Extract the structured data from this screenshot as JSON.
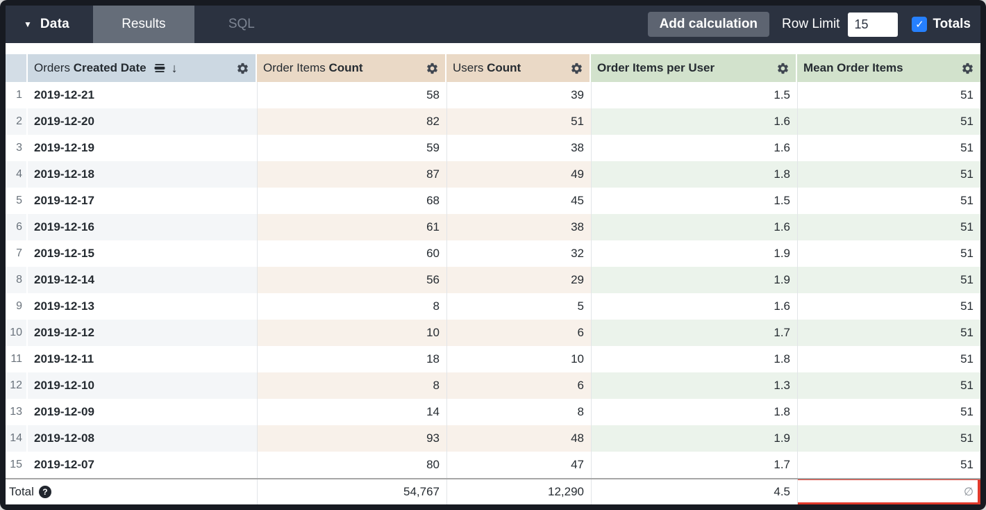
{
  "topbar": {
    "data_label": "Data",
    "tabs": [
      {
        "label": "Results",
        "active": true
      },
      {
        "label": "SQL",
        "active": false
      }
    ],
    "add_calculation_label": "Add calculation",
    "row_limit_label": "Row Limit",
    "row_limit_value": "15",
    "totals_label": "Totals",
    "totals_checked": true
  },
  "table": {
    "columns": [
      {
        "regular": "Orders ",
        "bold": "Created Date",
        "type": "dimension",
        "sorted_desc": true
      },
      {
        "regular": "Order Items ",
        "bold": "Count",
        "type": "measure"
      },
      {
        "regular": "Users ",
        "bold": "Count",
        "type": "measure"
      },
      {
        "regular": "",
        "bold": "Order Items per User",
        "type": "table-calculation"
      },
      {
        "regular": "",
        "bold": "Mean Order Items",
        "type": "table-calculation"
      }
    ],
    "rows": [
      {
        "n": "1",
        "date": "2019-12-21",
        "order_items_count": "58",
        "users_count": "39",
        "order_items_per_user": "1.5",
        "mean_order_items": "51"
      },
      {
        "n": "2",
        "date": "2019-12-20",
        "order_items_count": "82",
        "users_count": "51",
        "order_items_per_user": "1.6",
        "mean_order_items": "51"
      },
      {
        "n": "3",
        "date": "2019-12-19",
        "order_items_count": "59",
        "users_count": "38",
        "order_items_per_user": "1.6",
        "mean_order_items": "51"
      },
      {
        "n": "4",
        "date": "2019-12-18",
        "order_items_count": "87",
        "users_count": "49",
        "order_items_per_user": "1.8",
        "mean_order_items": "51"
      },
      {
        "n": "5",
        "date": "2019-12-17",
        "order_items_count": "68",
        "users_count": "45",
        "order_items_per_user": "1.5",
        "mean_order_items": "51"
      },
      {
        "n": "6",
        "date": "2019-12-16",
        "order_items_count": "61",
        "users_count": "38",
        "order_items_per_user": "1.6",
        "mean_order_items": "51"
      },
      {
        "n": "7",
        "date": "2019-12-15",
        "order_items_count": "60",
        "users_count": "32",
        "order_items_per_user": "1.9",
        "mean_order_items": "51"
      },
      {
        "n": "8",
        "date": "2019-12-14",
        "order_items_count": "56",
        "users_count": "29",
        "order_items_per_user": "1.9",
        "mean_order_items": "51"
      },
      {
        "n": "9",
        "date": "2019-12-13",
        "order_items_count": "8",
        "users_count": "5",
        "order_items_per_user": "1.6",
        "mean_order_items": "51"
      },
      {
        "n": "10",
        "date": "2019-12-12",
        "order_items_count": "10",
        "users_count": "6",
        "order_items_per_user": "1.7",
        "mean_order_items": "51"
      },
      {
        "n": "11",
        "date": "2019-12-11",
        "order_items_count": "18",
        "users_count": "10",
        "order_items_per_user": "1.8",
        "mean_order_items": "51"
      },
      {
        "n": "12",
        "date": "2019-12-10",
        "order_items_count": "8",
        "users_count": "6",
        "order_items_per_user": "1.3",
        "mean_order_items": "51"
      },
      {
        "n": "13",
        "date": "2019-12-09",
        "order_items_count": "14",
        "users_count": "8",
        "order_items_per_user": "1.8",
        "mean_order_items": "51"
      },
      {
        "n": "14",
        "date": "2019-12-08",
        "order_items_count": "93",
        "users_count": "48",
        "order_items_per_user": "1.9",
        "mean_order_items": "51"
      },
      {
        "n": "15",
        "date": "2019-12-07",
        "order_items_count": "80",
        "users_count": "47",
        "order_items_per_user": "1.7",
        "mean_order_items": "51"
      }
    ],
    "total": {
      "label": "Total",
      "order_items_count": "54,767",
      "users_count": "12,290",
      "order_items_per_user": "4.5",
      "mean_order_items": "∅"
    }
  },
  "icons": {
    "dropdown_caret": "▼",
    "sort_desc_arrow": "↓",
    "checkmark": "✓",
    "help": "?",
    "gear": "settings-cog",
    "subtotal": "subtotal-bars"
  },
  "colors": {
    "topbar_bg": "#2b3240",
    "active_tab_bg": "#656d79",
    "accent_blue": "#2680ff",
    "annotation_red": "#e0392b",
    "header_dimension": "#ccd8e2",
    "header_measure": "#ead9c6",
    "header_calc": "#d2e2cc",
    "stripe_dimension": "#f4f6f8",
    "stripe_measure": "#f8f1ea",
    "stripe_calc": "#ebf3eb"
  }
}
